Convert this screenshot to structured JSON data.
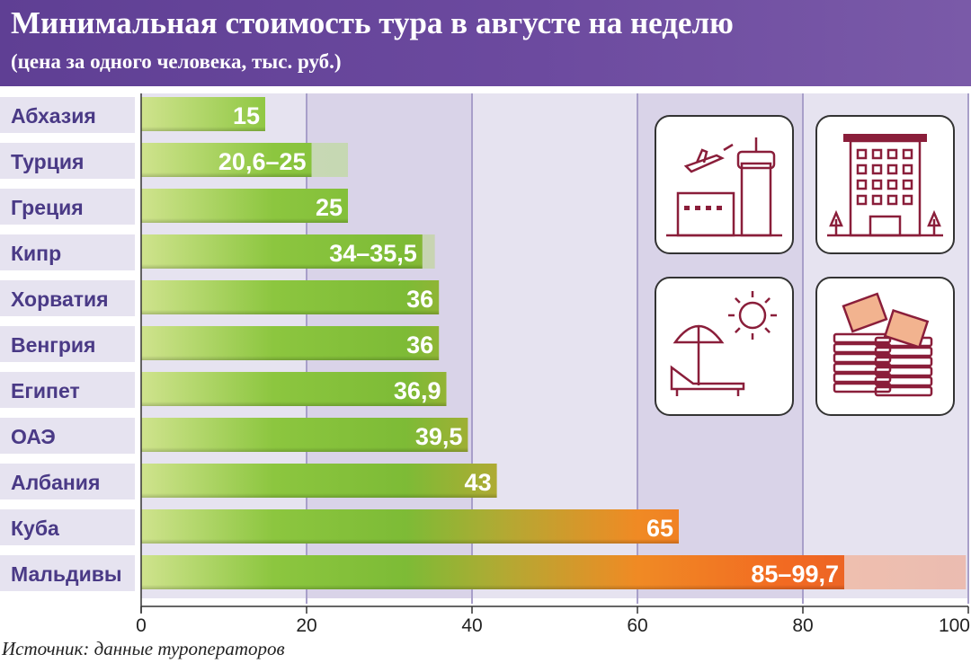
{
  "header": {
    "title": "Минимальная стоимость тура в августе на неделю",
    "subtitle": "(цена за одного человека, тыс. руб.)"
  },
  "source": "Источник: данные туроператоров",
  "icons": [
    "airport-icon",
    "hotel-icon",
    "beach-sun-icon",
    "money-stacks-icon"
  ],
  "colors": {
    "header": "#6a4a9c",
    "label": "#4a3a86",
    "band_light": "#e6e3f0",
    "band_dark": "#d9d3e8",
    "grid": "#a89fc9"
  },
  "chart_data": {
    "type": "bar",
    "orientation": "horizontal",
    "title": "Минимальная стоимость тура в августе на неделю",
    "subtitle": "(цена за одного человека, тыс. руб.)",
    "xlabel": "",
    "ylabel": "",
    "xlim": [
      0,
      100
    ],
    "ticks": [
      0,
      20,
      40,
      60,
      80,
      100
    ],
    "grid": true,
    "legend": "none",
    "categories": [
      "Абхазия",
      "Турция",
      "Греция",
      "Кипр",
      "Хорватия",
      "Венгрия",
      "Египет",
      "ОАЭ",
      "Албания",
      "Куба",
      "Мальдивы"
    ],
    "min_values": [
      15,
      20.6,
      25,
      34,
      36,
      36,
      36.9,
      39.5,
      43,
      65,
      85
    ],
    "max_values": [
      15,
      25,
      25,
      35.5,
      36,
      36,
      36.9,
      39.5,
      43,
      65,
      99.7
    ],
    "value_labels": [
      "15",
      "20,6–25",
      "25",
      "34–35,5",
      "36",
      "36",
      "36,9",
      "39,5",
      "43",
      "65",
      "85–99,7"
    ]
  }
}
